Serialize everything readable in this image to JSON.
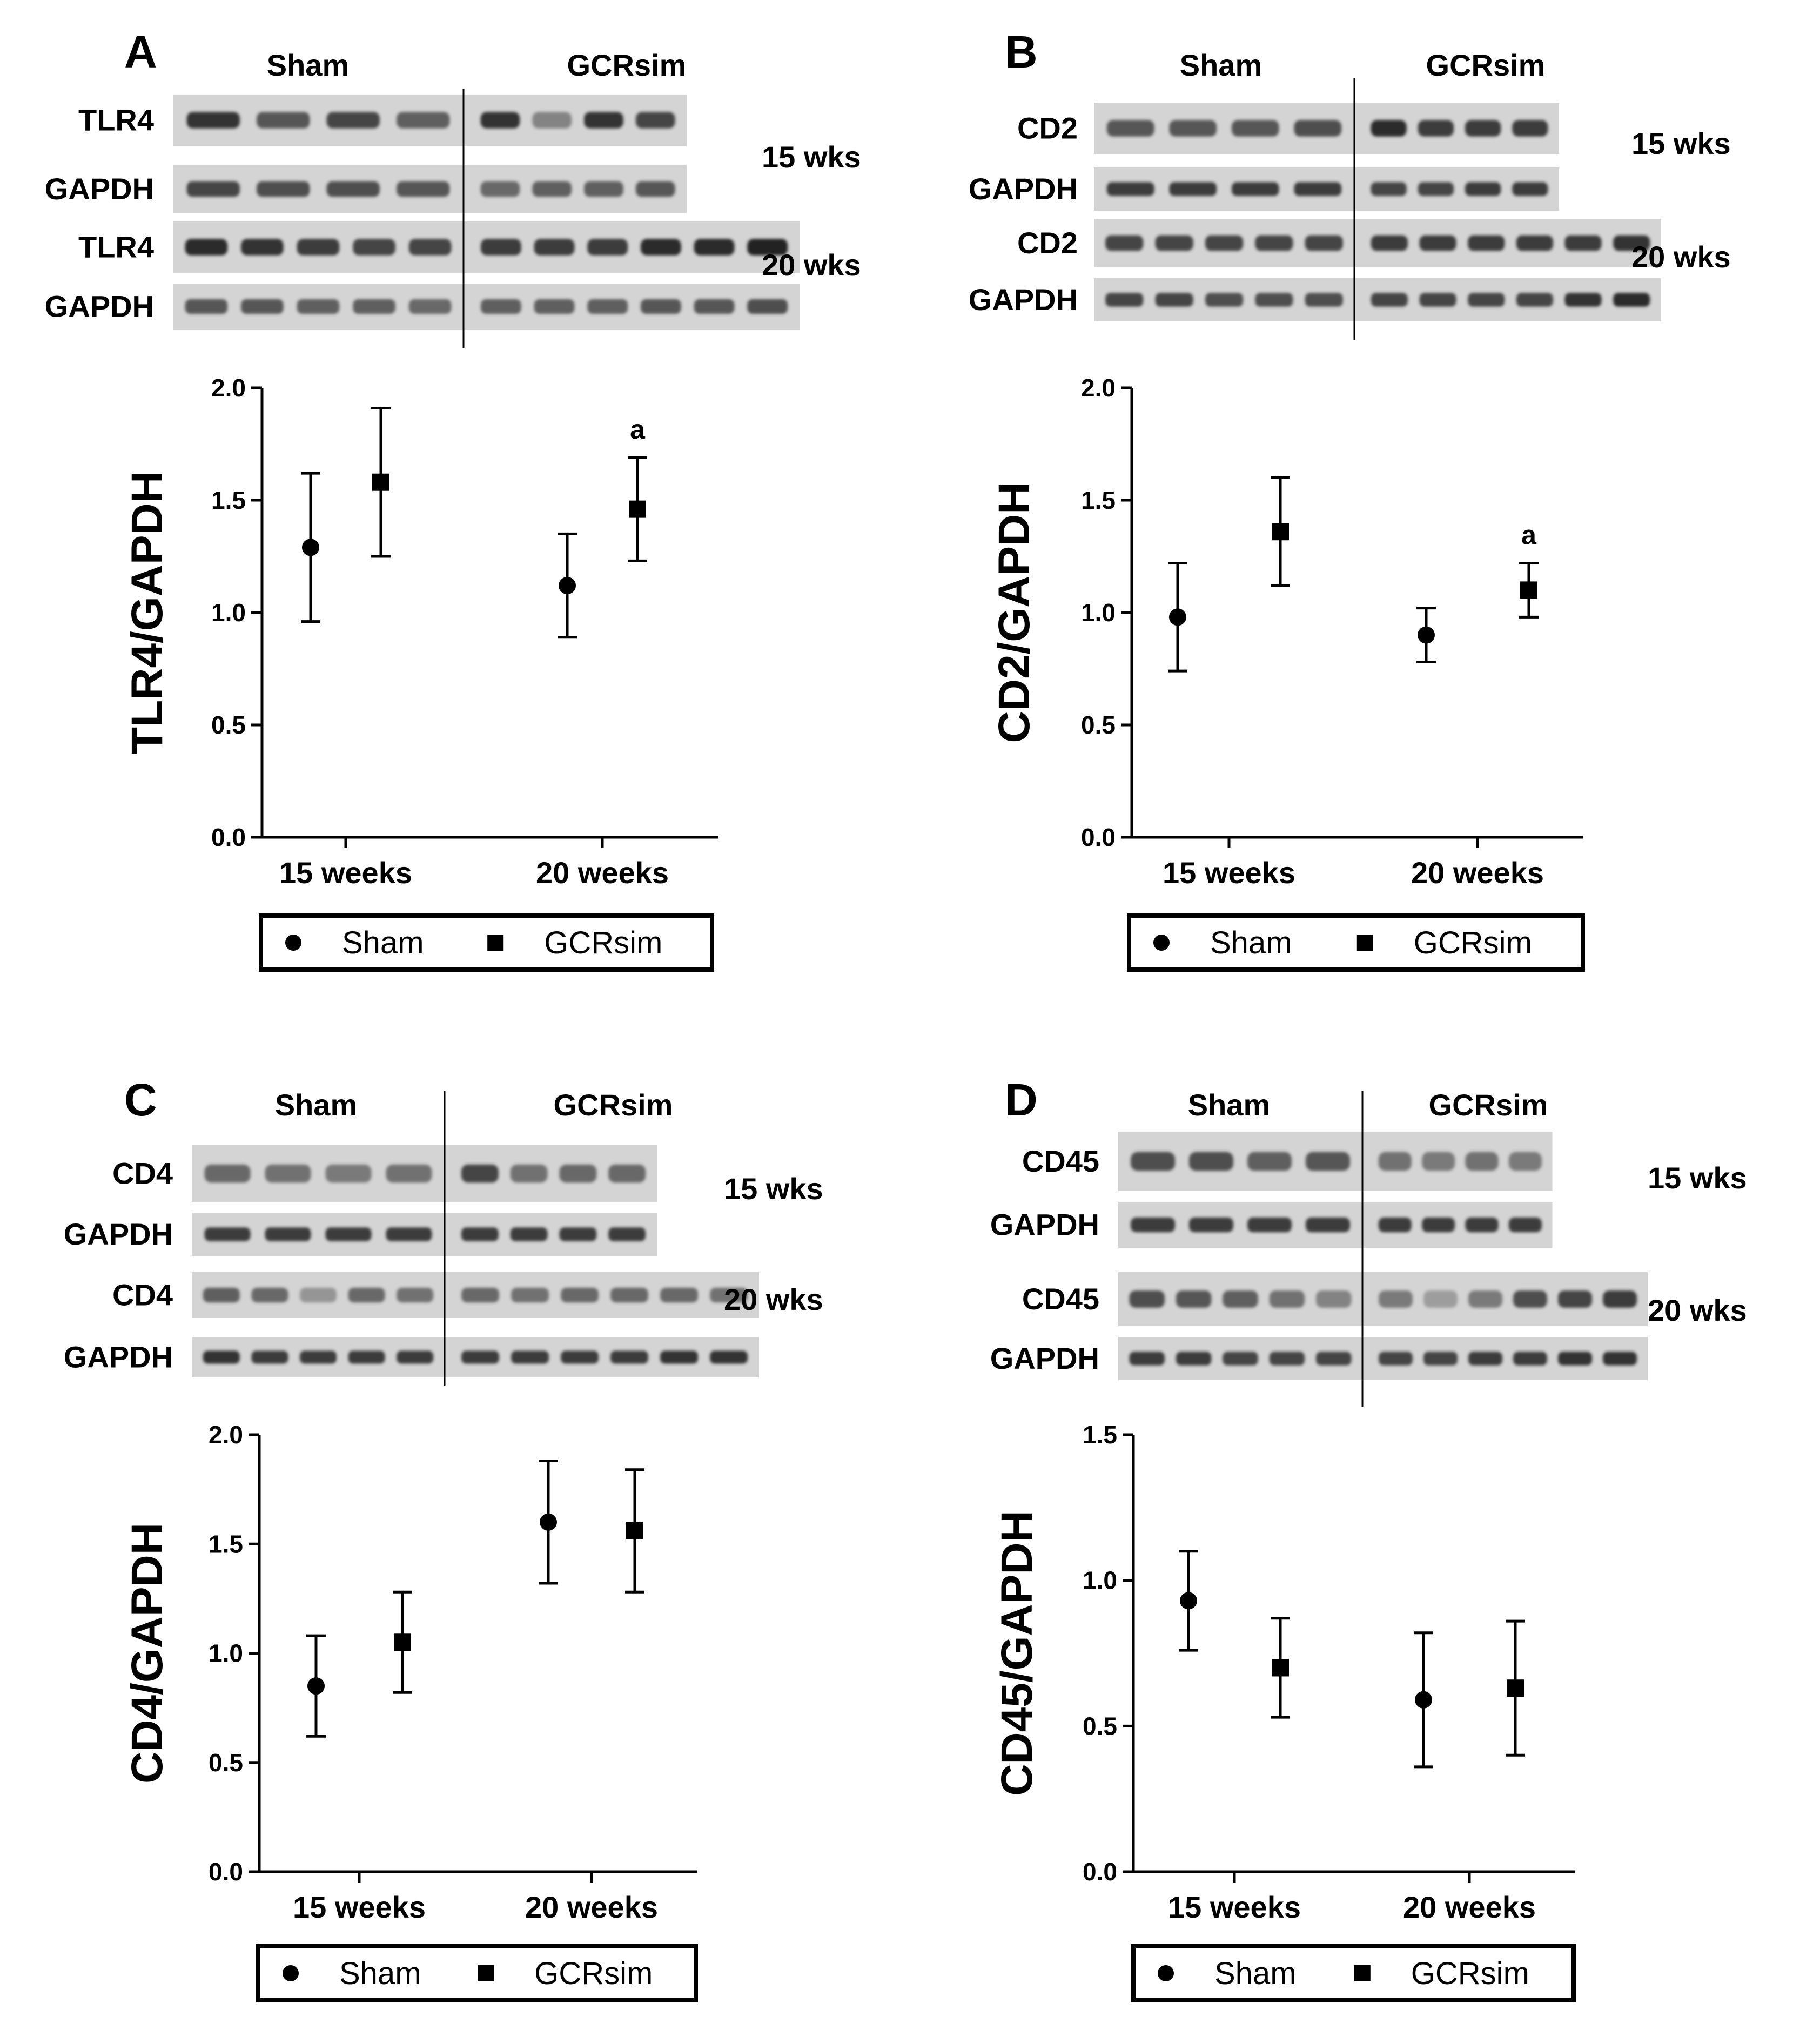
{
  "colors": {
    "marker": "#000000",
    "background": "#ffffff",
    "blot_bg": "#d4d4d4",
    "band": "#202020"
  },
  "chart_data": [
    {
      "panel": "A",
      "type": "scatter",
      "ylabel": "TLR4/GAPDH",
      "xlabel": "",
      "categories": [
        "15 weeks",
        "20 weeks"
      ],
      "ylim": [
        0,
        2.0
      ],
      "yticks": [
        "0.0",
        "0.5",
        "1.0",
        "1.5",
        "2.0"
      ],
      "series": [
        {
          "name": "Sham",
          "marker": "circle",
          "values": [
            1.29,
            1.12
          ],
          "errors": [
            0.33,
            0.23
          ]
        },
        {
          "name": "GCRsim",
          "marker": "square",
          "values": [
            1.58,
            1.46
          ],
          "errors": [
            0.33,
            0.23
          ]
        }
      ],
      "annotations": [
        {
          "category": 1,
          "series": 1,
          "text": "a"
        }
      ],
      "legend": {
        "position": "bottom",
        "items": [
          "Sham",
          "GCRsim"
        ]
      },
      "blot": {
        "groups": [
          "Sham",
          "GCRsim"
        ],
        "rows": [
          {
            "label": "TLR4",
            "time": "",
            "sham_lanes": 4,
            "gcr_lanes": 4,
            "sham_int": [
              0.9,
              0.7,
              0.8,
              0.65
            ],
            "gcr_int": [
              0.9,
              0.45,
              0.9,
              0.8
            ]
          },
          {
            "label": "GAPDH",
            "time": "15 wks",
            "sham_lanes": 4,
            "gcr_lanes": 4,
            "sham_int": [
              0.8,
              0.75,
              0.75,
              0.7
            ],
            "gcr_int": [
              0.6,
              0.65,
              0.65,
              0.7
            ]
          },
          {
            "label": "TLR4",
            "time": "",
            "sham_lanes": 5,
            "gcr_lanes": 6,
            "sham_int": [
              0.95,
              0.9,
              0.85,
              0.8,
              0.8
            ],
            "gcr_int": [
              0.85,
              0.85,
              0.85,
              0.95,
              0.95,
              1.0
            ]
          },
          {
            "label": "GAPDH",
            "time": "20 wks",
            "sham_lanes": 5,
            "gcr_lanes": 6,
            "sham_int": [
              0.7,
              0.7,
              0.65,
              0.65,
              0.6
            ],
            "gcr_int": [
              0.65,
              0.65,
              0.65,
              0.7,
              0.7,
              0.75
            ]
          }
        ]
      }
    },
    {
      "panel": "B",
      "type": "scatter",
      "ylabel": "CD2/GAPDH",
      "xlabel": "",
      "categories": [
        "15 weeks",
        "20 weeks"
      ],
      "ylim": [
        0,
        2.0
      ],
      "yticks": [
        "0.0",
        "0.5",
        "1.0",
        "1.5",
        "2.0"
      ],
      "series": [
        {
          "name": "Sham",
          "marker": "circle",
          "values": [
            0.98,
            0.9
          ],
          "errors": [
            0.24,
            0.12
          ]
        },
        {
          "name": "GCRsim",
          "marker": "square",
          "values": [
            1.36,
            1.1
          ],
          "errors": [
            0.24,
            0.12
          ]
        }
      ],
      "annotations": [
        {
          "category": 1,
          "series": 1,
          "text": "a"
        }
      ],
      "legend": {
        "position": "bottom",
        "items": [
          "Sham",
          "GCRsim"
        ]
      },
      "blot": {
        "groups": [
          "Sham",
          "GCRsim"
        ],
        "rows": [
          {
            "label": "CD2",
            "time": "",
            "sham_lanes": 4,
            "gcr_lanes": 4,
            "sham_int": [
              0.7,
              0.7,
              0.7,
              0.75
            ],
            "gcr_int": [
              0.95,
              0.85,
              0.85,
              0.85
            ]
          },
          {
            "label": "GAPDH",
            "time": "15 wks",
            "sham_lanes": 4,
            "gcr_lanes": 4,
            "sham_int": [
              0.85,
              0.85,
              0.85,
              0.85
            ],
            "gcr_int": [
              0.8,
              0.8,
              0.85,
              0.85
            ]
          },
          {
            "label": "CD2",
            "time": "",
            "sham_lanes": 5,
            "gcr_lanes": 6,
            "sham_int": [
              0.8,
              0.8,
              0.8,
              0.8,
              0.8
            ],
            "gcr_int": [
              0.85,
              0.85,
              0.85,
              0.85,
              0.85,
              0.9
            ]
          },
          {
            "label": "GAPDH",
            "time": "20 wks",
            "sham_lanes": 5,
            "gcr_lanes": 6,
            "sham_int": [
              0.8,
              0.8,
              0.75,
              0.75,
              0.75
            ],
            "gcr_int": [
              0.8,
              0.8,
              0.8,
              0.8,
              0.9,
              0.95
            ]
          }
        ]
      }
    },
    {
      "panel": "C",
      "type": "scatter",
      "ylabel": "CD4/GAPDH",
      "xlabel": "",
      "categories": [
        "15 weeks",
        "20 weeks"
      ],
      "ylim": [
        0,
        2.0
      ],
      "yticks": [
        "0.0",
        "0.5",
        "1.0",
        "1.5",
        "2.0"
      ],
      "series": [
        {
          "name": "Sham",
          "marker": "circle",
          "values": [
            0.85,
            1.6
          ],
          "errors": [
            0.23,
            0.28
          ]
        },
        {
          "name": "GCRsim",
          "marker": "square",
          "values": [
            1.05,
            1.56
          ],
          "errors": [
            0.23,
            0.28
          ]
        }
      ],
      "annotations": [],
      "legend": {
        "position": "bottom",
        "items": [
          "Sham",
          "GCRsim"
        ]
      },
      "blot": {
        "groups": [
          "Sham",
          "GCRsim"
        ],
        "rows": [
          {
            "label": "CD4",
            "time": "",
            "sham_lanes": 4,
            "gcr_lanes": 4,
            "sham_int": [
              0.6,
              0.55,
              0.5,
              0.55
            ],
            "gcr_int": [
              0.8,
              0.55,
              0.6,
              0.6
            ]
          },
          {
            "label": "GAPDH",
            "time": "15 wks",
            "sham_lanes": 4,
            "gcr_lanes": 4,
            "sham_int": [
              0.85,
              0.85,
              0.85,
              0.85
            ],
            "gcr_int": [
              0.85,
              0.85,
              0.85,
              0.85
            ]
          },
          {
            "label": "CD4",
            "time": "20 wks",
            "sham_lanes": 5,
            "gcr_lanes": 6,
            "sham_int": [
              0.65,
              0.6,
              0.35,
              0.6,
              0.55
            ],
            "gcr_int": [
              0.6,
              0.55,
              0.6,
              0.6,
              0.6,
              0.55
            ]
          },
          {
            "label": "GAPDH",
            "time": "",
            "sham_lanes": 5,
            "gcr_lanes": 6,
            "sham_int": [
              0.9,
              0.85,
              0.85,
              0.85,
              0.85
            ],
            "gcr_int": [
              0.85,
              0.85,
              0.85,
              0.85,
              0.9,
              0.9
            ]
          }
        ]
      }
    },
    {
      "panel": "D",
      "type": "scatter",
      "ylabel": "CD45/GAPDH",
      "xlabel": "",
      "categories": [
        "15 weeks",
        "20 weeks"
      ],
      "ylim": [
        0,
        1.5
      ],
      "yticks": [
        "0.0",
        "0.5",
        "1.0",
        "1.5"
      ],
      "series": [
        {
          "name": "Sham",
          "marker": "circle",
          "values": [
            0.93,
            0.59
          ],
          "errors": [
            0.17,
            0.23
          ]
        },
        {
          "name": "GCRsim",
          "marker": "square",
          "values": [
            0.7,
            0.63
          ],
          "errors": [
            0.17,
            0.23
          ]
        }
      ],
      "annotations": [],
      "legend": {
        "position": "bottom",
        "items": [
          "Sham",
          "GCRsim"
        ]
      },
      "blot": {
        "groups": [
          "Sham",
          "GCRsim"
        ],
        "rows": [
          {
            "label": "CD45",
            "time": "",
            "sham_lanes": 4,
            "gcr_lanes": 4,
            "sham_int": [
              0.75,
              0.75,
              0.65,
              0.7
            ],
            "gcr_int": [
              0.55,
              0.5,
              0.55,
              0.5
            ]
          },
          {
            "label": "GAPDH",
            "time": "15 wks",
            "sham_lanes": 4,
            "gcr_lanes": 4,
            "sham_int": [
              0.85,
              0.85,
              0.85,
              0.85
            ],
            "gcr_int": [
              0.85,
              0.85,
              0.85,
              0.85
            ]
          },
          {
            "label": "CD45",
            "time": "",
            "sham_lanes": 5,
            "gcr_lanes": 6,
            "sham_int": [
              0.75,
              0.7,
              0.65,
              0.55,
              0.45
            ],
            "gcr_int": [
              0.5,
              0.3,
              0.5,
              0.75,
              0.8,
              0.85
            ]
          },
          {
            "label": "GAPDH",
            "time": "20 wks",
            "sham_lanes": 5,
            "gcr_lanes": 6,
            "sham_int": [
              0.85,
              0.85,
              0.8,
              0.8,
              0.8
            ],
            "gcr_int": [
              0.8,
              0.8,
              0.85,
              0.85,
              0.9,
              0.9
            ]
          }
        ]
      }
    }
  ]
}
